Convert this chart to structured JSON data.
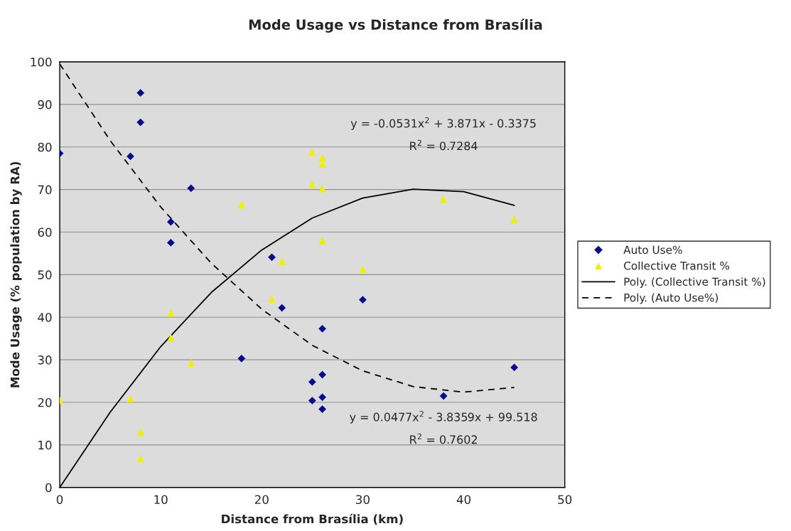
{
  "chart_data": {
    "type": "scatter",
    "title": "Mode Usage vs Distance from Brasília",
    "xlabel": "Distance from Brasília (km)",
    "ylabel": "Mode Usage (% population by RA)",
    "xlim": [
      0,
      50
    ],
    "xticks": [
      0,
      10,
      20,
      30,
      40,
      50
    ],
    "ylim": [
      0,
      100
    ],
    "yticks": [
      0,
      10,
      20,
      30,
      40,
      50,
      60,
      70,
      80,
      90,
      100
    ],
    "grid": "y",
    "legend": "right",
    "annotations": [
      "y = -0.0531x$^{2}$ + 3.871x - 0.3375",
      "R$^{2}$ = 0.7284",
      "y = 0.0477x$^{2}$ - 3.8359x + 99.518",
      "R$^{2}$ = 0.7602"
    ],
    "series": [
      {
        "name": "Auto Use%",
        "marker": "diamond",
        "color": "#0a0a8c",
        "x": [
          0,
          8,
          8,
          7,
          13,
          11,
          11,
          18,
          21,
          22,
          26,
          30,
          25,
          26,
          25,
          26,
          26,
          38,
          45
        ],
        "values": [
          78.5,
          92.7,
          85.8,
          77.8,
          70.3,
          62.4,
          57.5,
          30.3,
          54.1,
          42.2,
          37.3,
          44.1,
          24.8,
          26.5,
          20.4,
          21.2,
          18.4,
          21.5,
          28.2
        ]
      },
      {
        "name": "Collective Transit %",
        "marker": "triangle",
        "color": "#f0f000",
        "x": [
          0,
          7,
          8,
          8,
          11,
          11,
          13,
          18,
          21,
          22,
          25,
          26,
          26,
          25,
          26,
          26,
          30,
          38,
          45
        ],
        "values": [
          20.5,
          20.9,
          13,
          6.8,
          41,
          35.2,
          29.3,
          66.4,
          44.3,
          53.1,
          78.8,
          77.5,
          76,
          71.2,
          70.2,
          58,
          51.3,
          67.8,
          63
        ]
      },
      {
        "name": "Poly. (Collective Transit %)",
        "type": "line",
        "marker": "none",
        "line_style": "solid",
        "color": "#000000",
        "x": [
          0,
          5,
          10,
          15,
          20,
          25,
          30,
          35,
          40,
          45
        ],
        "values": [
          0,
          17.7,
          33.1,
          45.8,
          55.8,
          63.3,
          68.0,
          70.1,
          69.5,
          66.3
        ]
      },
      {
        "name": "Poly. (Auto Use%)",
        "type": "line",
        "marker": "none",
        "line_style": "dashed",
        "color": "#000000",
        "x": [
          0,
          5,
          10,
          15,
          20,
          25,
          30,
          35,
          40,
          45
        ],
        "values": [
          99.5,
          81.5,
          65.9,
          52.7,
          41.9,
          33.4,
          27.4,
          23.7,
          22.4,
          23.5
        ]
      }
    ]
  }
}
